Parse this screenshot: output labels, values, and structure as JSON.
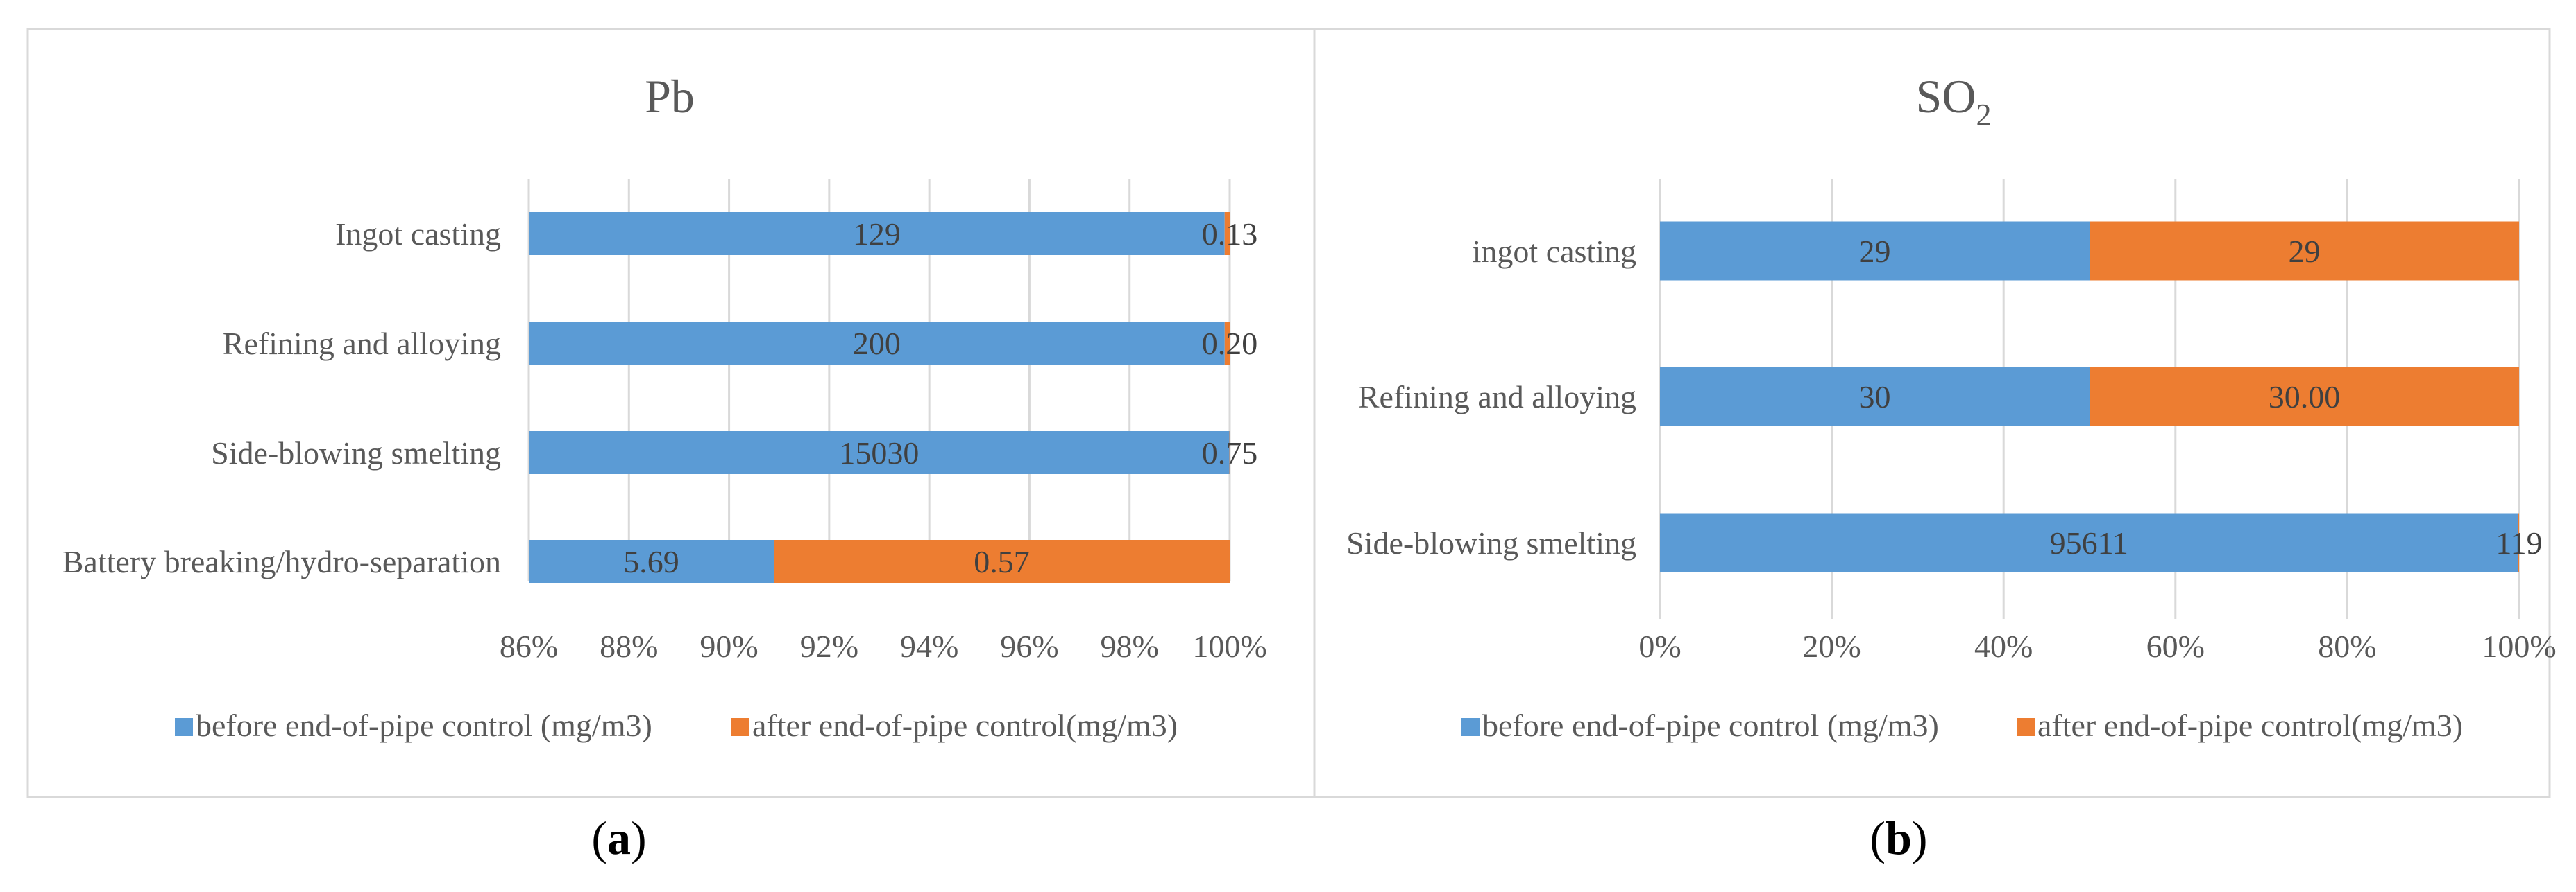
{
  "colors": {
    "before": "#5B9BD5",
    "after": "#ED7D31",
    "grid": "#D9D9D9",
    "text": "#595959",
    "border": "#D9D9D9"
  },
  "panel_labels": {
    "a": "a",
    "b": "b"
  },
  "chart_data": [
    {
      "id": "pb",
      "type": "bar",
      "stacked": true,
      "orientation": "horizontal",
      "normalized": true,
      "title": "Pb",
      "title_sub": "",
      "categories": [
        "Ingot casting",
        "Refining and alloying",
        "Side-blowing smelting",
        "Battery breaking/hydro-separation"
      ],
      "series": [
        {
          "name": "before end-of-pipe control (mg/m3)",
          "color_key": "before",
          "values": [
            129,
            200,
            15030,
            5.69
          ],
          "labels": [
            "129",
            "200",
            "15030",
            "5.69"
          ]
        },
        {
          "name": "after end-of-pipe control(mg/m3)",
          "color_key": "after",
          "values": [
            0.13,
            0.2,
            0.75,
            0.57
          ],
          "labels": [
            "0.13",
            "0.20",
            "0.75",
            "0.57"
          ]
        }
      ],
      "xlim": [
        86,
        100
      ],
      "xticks": [
        "86%",
        "88%",
        "90%",
        "92%",
        "94%",
        "96%",
        "98%",
        "100%"
      ],
      "xtick_values": [
        86,
        88,
        90,
        92,
        94,
        96,
        98,
        100
      ],
      "legend": "bottom"
    },
    {
      "id": "so2",
      "type": "bar",
      "stacked": true,
      "orientation": "horizontal",
      "normalized": true,
      "title": "SO",
      "title_sub": "2",
      "categories": [
        "ingot casting",
        "Refining and alloying",
        "Side-blowing smelting"
      ],
      "series": [
        {
          "name": "before end-of-pipe control (mg/m3)",
          "color_key": "before",
          "values": [
            29,
            30,
            95611
          ],
          "labels": [
            "29",
            "30",
            "95611"
          ]
        },
        {
          "name": "after end-of-pipe control(mg/m3)",
          "color_key": "after",
          "values": [
            29,
            30.0,
            119
          ],
          "labels": [
            "29",
            "30.00",
            "119"
          ]
        }
      ],
      "xlim": [
        0,
        100
      ],
      "xticks": [
        "0%",
        "20%",
        "40%",
        "60%",
        "80%",
        "100%"
      ],
      "xtick_values": [
        0,
        20,
        40,
        60,
        80,
        100
      ],
      "legend": "bottom"
    }
  ]
}
